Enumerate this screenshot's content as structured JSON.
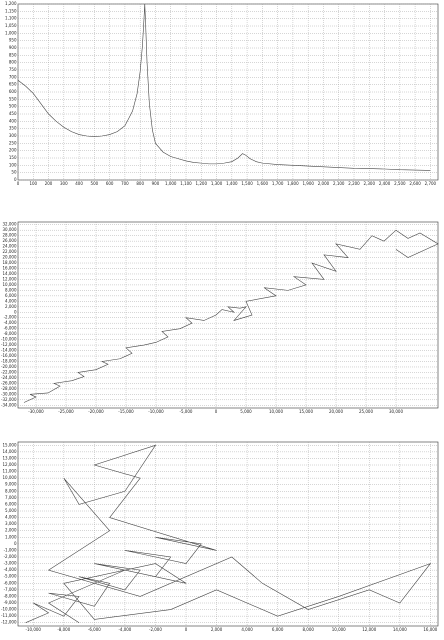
{
  "chart_data": [
    {
      "type": "line",
      "grid": true,
      "color": "#444444",
      "x": [
        0,
        50,
        100,
        150,
        200,
        250,
        300,
        350,
        400,
        450,
        500,
        550,
        600,
        650,
        700,
        750,
        780,
        800,
        815,
        825,
        830,
        835,
        845,
        860,
        880,
        900,
        950,
        1000,
        1050,
        1100,
        1150,
        1200,
        1250,
        1300,
        1350,
        1400,
        1440,
        1470,
        1490,
        1520,
        1560,
        1600,
        1700,
        1800,
        1900,
        2000,
        2100,
        2200,
        2300,
        2400,
        2500,
        2600,
        2700
      ],
      "values": [
        680,
        640,
        590,
        520,
        450,
        400,
        360,
        330,
        310,
        300,
        295,
        300,
        310,
        330,
        370,
        470,
        590,
        740,
        920,
        1100,
        1200,
        1080,
        800,
        520,
        340,
        250,
        190,
        160,
        145,
        130,
        120,
        115,
        110,
        110,
        115,
        125,
        150,
        180,
        170,
        145,
        125,
        115,
        105,
        100,
        95,
        90,
        85,
        80,
        78,
        75,
        70,
        68,
        65
      ],
      "xlim": [
        0,
        2750
      ],
      "ylim": [
        0,
        1200
      ],
      "xticks": [
        0,
        100,
        200,
        300,
        400,
        500,
        600,
        700,
        800,
        900,
        {
          "value": 1000,
          "label": "1,000"
        },
        {
          "value": 1100,
          "label": "1,100"
        },
        {
          "value": 1200,
          "label": "1,200"
        },
        {
          "value": 1300,
          "label": "1,300"
        },
        {
          "value": 1400,
          "label": "1,400"
        },
        {
          "value": 1500,
          "label": "1,500"
        },
        {
          "value": 1600,
          "label": "1,600"
        },
        {
          "value": 1700,
          "label": "1,700"
        },
        {
          "value": 1800,
          "label": "1,800"
        },
        {
          "value": 1900,
          "label": "1,900"
        },
        {
          "value": 2000,
          "label": "2,000"
        },
        {
          "value": 2100,
          "label": "2,100"
        },
        {
          "value": 2200,
          "label": "2,200"
        },
        {
          "value": 2300,
          "label": "2,300"
        },
        {
          "value": 2400,
          "label": "2,400"
        },
        {
          "value": 2500,
          "label": "2,500"
        },
        {
          "value": 2600,
          "label": "2,600"
        },
        {
          "value": 2700,
          "label": "2,700"
        }
      ],
      "yticks": [
        0,
        50,
        100,
        150,
        200,
        250,
        300,
        350,
        400,
        450,
        500,
        550,
        600,
        650,
        700,
        750,
        800,
        850,
        900,
        950,
        {
          "value": 1000,
          "label": "1,000"
        },
        {
          "value": 1050,
          "label": "1,050"
        },
        {
          "value": 1100,
          "label": "1,100"
        },
        {
          "value": 1150,
          "label": "1,150"
        },
        {
          "value": 1200,
          "label": "1,200"
        }
      ]
    },
    {
      "type": "line",
      "grid": true,
      "color": "#444444",
      "x": [
        -32000,
        -30000,
        -31000,
        -28000,
        -26000,
        -27000,
        -24000,
        -22000,
        -23000,
        -20000,
        -18000,
        -19000,
        -16000,
        -14000,
        -15000,
        -12000,
        -10000,
        -8000,
        -9000,
        -6000,
        -4000,
        -5000,
        -2000,
        0,
        1000,
        3000,
        2000,
        4000,
        5000,
        3000,
        6000,
        5000,
        10000,
        8000,
        12000,
        15000,
        13000,
        18000,
        16000,
        20000,
        18000,
        22000,
        20000,
        24000,
        26000,
        28000,
        30000,
        32000,
        34000,
        37000,
        32000,
        30000
      ],
      "values": [
        -33000,
        -31000,
        -30000,
        -29500,
        -27000,
        -26000,
        -25000,
        -23500,
        -22000,
        -21000,
        -19000,
        -18000,
        -17000,
        -15000,
        -13000,
        -12000,
        -11000,
        -9000,
        -7000,
        -6000,
        -4000,
        -2000,
        -3000,
        -1000,
        1000,
        0,
        2000,
        1500,
        2000,
        -3000,
        -1000,
        4000,
        6000,
        9000,
        8000,
        10000,
        13000,
        12000,
        18000,
        15000,
        21000,
        20000,
        25000,
        23000,
        28000,
        26000,
        30000,
        27000,
        29000,
        25000,
        20000,
        23000
      ],
      "xlim": [
        -33000,
        37000
      ],
      "ylim": [
        -35000,
        33000
      ],
      "xticks": [
        {
          "value": -30000,
          "label": "-30,000"
        },
        {
          "value": -25000,
          "label": "-25,000"
        },
        {
          "value": -20000,
          "label": "-20,000"
        },
        {
          "value": -15000,
          "label": "-15,000"
        },
        {
          "value": -10000,
          "label": "-10,000"
        },
        {
          "value": -5000,
          "label": "-5,000"
        },
        0,
        {
          "value": 5000,
          "label": "5,000"
        },
        {
          "value": 10000,
          "label": "10,000"
        },
        {
          "value": 15000,
          "label": "15,000"
        },
        {
          "value": 20000,
          "label": "20,000"
        },
        {
          "value": 25000,
          "label": "25,000"
        },
        {
          "value": 30000,
          "label": "30,000"
        }
      ],
      "yticks": [
        {
          "value": -34000,
          "label": "-34,000"
        },
        {
          "value": -32000,
          "label": "-32,000"
        },
        {
          "value": -30000,
          "label": "-30,000"
        },
        {
          "value": -28000,
          "label": "-28,000"
        },
        {
          "value": -26000,
          "label": "-26,000"
        },
        {
          "value": -24000,
          "label": "-24,000"
        },
        {
          "value": -22000,
          "label": "-22,000"
        },
        {
          "value": -20000,
          "label": "-20,000"
        },
        {
          "value": -18000,
          "label": "-18,000"
        },
        {
          "value": -16000,
          "label": "-16,000"
        },
        {
          "value": -14000,
          "label": "-14,000"
        },
        {
          "value": -12000,
          "label": "-12,000"
        },
        {
          "value": -10000,
          "label": "-10,000"
        },
        {
          "value": -8000,
          "label": "-8,000"
        },
        {
          "value": -6000,
          "label": "-6,000"
        },
        {
          "value": -4000,
          "label": "-4,000"
        },
        {
          "value": -2000,
          "label": "-2,000"
        },
        0,
        {
          "value": 2000,
          "label": "2,000"
        },
        {
          "value": 4000,
          "label": "4,000"
        },
        {
          "value": 6000,
          "label": "6,000"
        },
        {
          "value": 8000,
          "label": "8,000"
        },
        {
          "value": 10000,
          "label": "10,000"
        },
        {
          "value": 12000,
          "label": "12,000"
        },
        {
          "value": 14000,
          "label": "14,000"
        },
        {
          "value": 16000,
          "label": "16,000"
        },
        {
          "value": 18000,
          "label": "18,000"
        },
        {
          "value": 20000,
          "label": "20,000"
        },
        {
          "value": 22000,
          "label": "22,000"
        },
        {
          "value": 24000,
          "label": "24,000"
        },
        {
          "value": 26000,
          "label": "26,000"
        },
        {
          "value": 28000,
          "label": "28,000"
        },
        {
          "value": 30000,
          "label": "30,000"
        },
        {
          "value": 32000,
          "label": "32,000"
        }
      ]
    },
    {
      "type": "line",
      "grid": true,
      "color": "#444444",
      "x": [
        -10500,
        -9000,
        -10000,
        -8000,
        -7000,
        -9000,
        -6000,
        -5000,
        -7000,
        -4000,
        -3000,
        -6000,
        -2000,
        -1000,
        -4000,
        0,
        1000,
        -2000,
        2000,
        -5000,
        -3000,
        -6000,
        -2000,
        -4000,
        -7000,
        -8000,
        -5000,
        -9000,
        -3000,
        3000,
        5000,
        8000,
        12000,
        14000,
        16000,
        10000,
        6000,
        2000,
        -1000,
        -6000,
        -8000,
        -2000,
        0,
        -4000,
        -9000,
        -7000
      ],
      "values": [
        -12000,
        -10500,
        -9000,
        -11000,
        -8000,
        -7500,
        -9500,
        -6000,
        -5000,
        -7000,
        -4000,
        -3000,
        -5000,
        -2000,
        -1000,
        -3000,
        0,
        1000,
        -1000,
        4000,
        10000,
        12000,
        15000,
        8000,
        6000,
        10000,
        2000,
        -4000,
        -8000,
        -2000,
        -6000,
        -10000,
        -7000,
        -9000,
        -3000,
        -8000,
        -11000,
        -7000,
        -10000,
        -11500,
        -6000,
        -3000,
        -6000,
        -4000,
        -9000,
        -12000
      ],
      "xlim": [
        -11000,
        16500
      ],
      "ylim": [
        -12500,
        15500
      ],
      "xticks": [
        {
          "value": -10000,
          "label": "-10,000"
        },
        {
          "value": -8000,
          "label": "-8,000"
        },
        {
          "value": -6000,
          "label": "-6,000"
        },
        {
          "value": -4000,
          "label": "-4,000"
        },
        {
          "value": -2000,
          "label": "-2,000"
        },
        0,
        {
          "value": 2000,
          "label": "2,000"
        },
        {
          "value": 4000,
          "label": "4,000"
        },
        {
          "value": 6000,
          "label": "6,000"
        },
        {
          "value": 8000,
          "label": "8,000"
        },
        {
          "value": 10000,
          "label": "10,000"
        },
        {
          "value": 12000,
          "label": "12,000"
        },
        {
          "value": 14000,
          "label": "14,000"
        },
        {
          "value": 16000,
          "label": "16,000"
        }
      ],
      "yticks": [
        {
          "value": -12000,
          "label": "-12,000"
        },
        {
          "value": -11000,
          "label": "-11,000"
        },
        {
          "value": -10000,
          "label": "-10,000"
        },
        {
          "value": -9000,
          "label": "-9,000"
        },
        {
          "value": -8000,
          "label": "-8,000"
        },
        {
          "value": -7000,
          "label": "-7,000"
        },
        {
          "value": -6000,
          "label": "-6,000"
        },
        {
          "value": -5000,
          "label": "-5,000"
        },
        {
          "value": -4000,
          "label": "-4,000"
        },
        {
          "value": -3000,
          "label": "-3,000"
        },
        {
          "value": -2000,
          "label": "-2,000"
        },
        {
          "value": -1000,
          "label": "-1,000"
        },
        0,
        {
          "value": 1000,
          "label": "1,000"
        },
        {
          "value": 2000,
          "label": "2,000"
        },
        {
          "value": 3000,
          "label": "3,000"
        },
        {
          "value": 4000,
          "label": "4,000"
        },
        {
          "value": 5000,
          "label": "5,000"
        },
        {
          "value": 6000,
          "label": "6,000"
        },
        {
          "value": 7000,
          "label": "7,000"
        },
        {
          "value": 8000,
          "label": "8,000"
        },
        {
          "value": 9000,
          "label": "9,000"
        },
        {
          "value": 10000,
          "label": "10,000"
        },
        {
          "value": 11000,
          "label": "11,000"
        },
        {
          "value": 12000,
          "label": "12,000"
        },
        {
          "value": 13000,
          "label": "13,000"
        },
        {
          "value": 14000,
          "label": "14,000"
        },
        {
          "value": 15000,
          "label": "15,000"
        }
      ]
    }
  ]
}
